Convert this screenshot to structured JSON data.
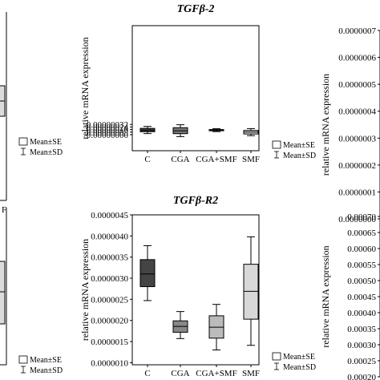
{
  "chart_data": [
    {
      "type": "box",
      "title": "",
      "ylabel": "",
      "categories": [],
      "legend": [
        "Mean±SE",
        "Mean±SD"
      ],
      "note": "left panel, cropped; only legend visible",
      "xtick_fragment": "F"
    },
    {
      "type": "box",
      "title": "TGFβ-2",
      "ylabel": "relative mRNA expression",
      "ylim": [
        -5e-07,
        3.4e-06
      ],
      "yticks": [
        "0.00000000",
        "0.00000008",
        "0.00000016",
        "0.00000024",
        "0.00000032"
      ],
      "ytick_values": [
        0,
        8e-08,
        1.6e-07,
        2.4e-07,
        3.2e-07
      ],
      "categories": [
        "C",
        "CGA",
        "CGA+SMF",
        "SMF"
      ],
      "boxes": [
        {
          "mean": 1.42e-07,
          "se_low": 9.1e-08,
          "se_high": 1.97e-07,
          "sd_low": 3.4e-08,
          "sd_high": 2.58e-07,
          "color": "#444444"
        },
        {
          "mean": 1.23e-07,
          "se_low": 3.2e-08,
          "se_high": 2.18e-07,
          "sd_low": -6e-08,
          "sd_high": 3.1e-07,
          "color": "#777777"
        },
        {
          "mean": 1.42e-07,
          "se_low": 1.22e-07,
          "se_high": 1.6e-07,
          "sd_low": 9.5e-08,
          "sd_high": 1.86e-07,
          "color": "#bbbbbb"
        },
        {
          "mean": 8.2e-08,
          "se_low": 2.2e-08,
          "se_high": 1.33e-07,
          "sd_low": -3e-08,
          "sd_high": 1.9e-07,
          "color": "#d8d8d8"
        }
      ],
      "legend": [
        "Mean±SE",
        "Mean±SD"
      ]
    },
    {
      "type": "box",
      "title": "",
      "ylabel": "relative mRNA expression",
      "ylim": [
        0,
        7e-07
      ],
      "yticks": [
        "0.0000000",
        "0.0000001",
        "0.0000002",
        "0.0000003",
        "0.0000004",
        "0.0000005",
        "0.0000006",
        "0.0000007"
      ],
      "ytick_values": [
        0,
        1e-07,
        2e-07,
        3e-07,
        4e-07,
        5e-07,
        6e-07,
        7e-07
      ],
      "categories": [],
      "note": "right panel, cropped"
    },
    {
      "type": "box",
      "title": "",
      "ylabel": "",
      "categories": [],
      "legend": [
        "Mean±SE",
        "Mean±SD"
      ],
      "note": "bottom-left panel, cropped; only legend visible"
    },
    {
      "type": "box",
      "title": "TGFβ-R2",
      "ylabel": "relative mRNA expression",
      "ylim": [
        9.5e-07,
        4.5e-06
      ],
      "yticks": [
        "0.0000010",
        "0.0000015",
        "0.0000020",
        "0.0000025",
        "0.0000030",
        "0.0000035",
        "0.0000040",
        "0.0000045"
      ],
      "ytick_values": [
        1e-06,
        1.5e-06,
        2e-06,
        2.5e-06,
        3e-06,
        3.5e-06,
        4e-06,
        4.5e-06
      ],
      "categories": [
        "C",
        "CGA",
        "CGA+SMF",
        "SMF"
      ],
      "boxes": [
        {
          "mean": 3.1e-06,
          "se_low": 2.8e-06,
          "se_high": 3.44e-06,
          "sd_low": 2.47e-06,
          "sd_high": 3.77e-06,
          "color": "#444444"
        },
        {
          "mean": 1.86e-06,
          "se_low": 1.72e-06,
          "se_high": 1.99e-06,
          "sd_low": 1.57e-06,
          "sd_high": 2.21e-06,
          "color": "#888888"
        },
        {
          "mean": 1.84e-06,
          "se_low": 1.58e-06,
          "se_high": 2.11e-06,
          "sd_low": 1.3e-06,
          "sd_high": 2.38e-06,
          "color": "#bbbbbb"
        },
        {
          "mean": 2.69e-06,
          "se_low": 2.03e-06,
          "se_high": 3.33e-06,
          "sd_low": 1.41e-06,
          "sd_high": 3.98e-06,
          "color": "#d8d8d8"
        }
      ],
      "legend": [
        "Mean±SE",
        "Mean±SD"
      ]
    },
    {
      "type": "box",
      "title": "",
      "ylabel": "relative mRNA expression",
      "ylim": [
        0.0002,
        0.0007
      ],
      "yticks": [
        "0.00020",
        "0.00025",
        "0.00030",
        "0.00035",
        "0.00040",
        "0.00045",
        "0.00050",
        "0.00055",
        "0.00060",
        "0.00065",
        "0.00070"
      ],
      "ytick_values": [
        0.0002,
        0.00025,
        0.0003,
        0.00035,
        0.0004,
        0.00045,
        0.0005,
        0.00055,
        0.0006,
        0.00065,
        0.0007
      ],
      "categories": [],
      "note": "bottom-right panel, cropped"
    }
  ]
}
